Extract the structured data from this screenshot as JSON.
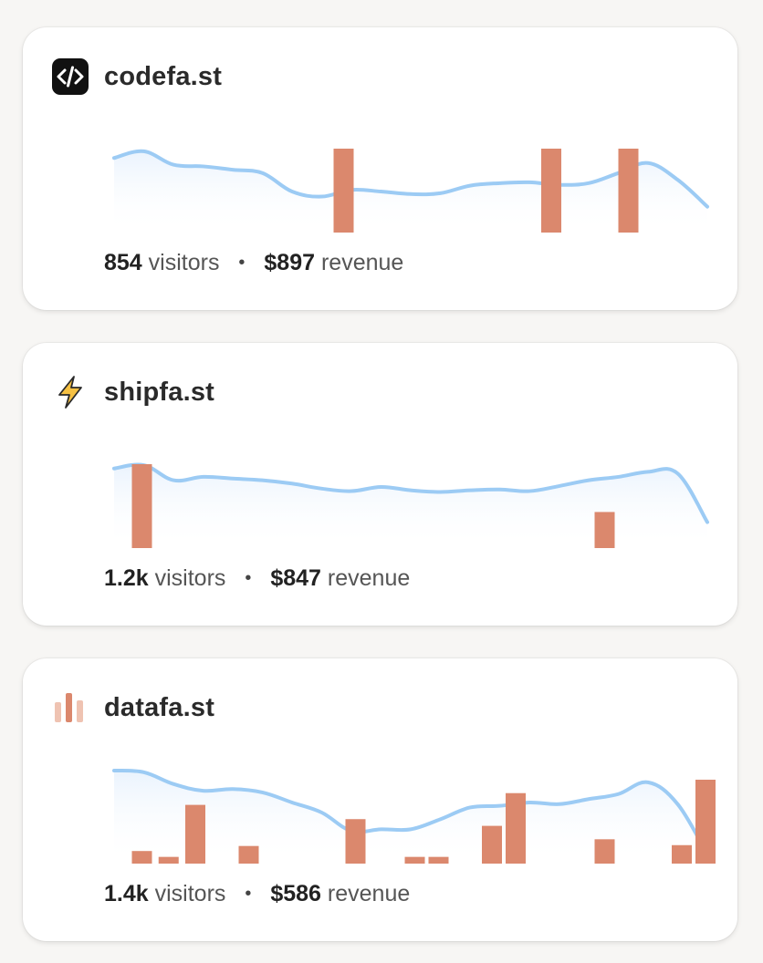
{
  "sites": [
    {
      "name": "codefa.st",
      "icon": "code-brackets-icon",
      "visitors_value": "854",
      "visitors_label": "visitors",
      "revenue_value": "$897",
      "revenue_label": "revenue",
      "separator": "•",
      "visitors_trend": [
        0.78,
        0.86,
        0.7,
        0.68,
        0.64,
        0.6,
        0.38,
        0.32,
        0.4,
        0.38,
        0.35,
        0.36,
        0.45,
        0.48,
        0.49,
        0.46,
        0.48,
        0.6,
        0.72,
        0.52,
        0.2
      ],
      "revenue_bars": [
        {
          "x": 0.37,
          "h": 1.0
        },
        {
          "x": 0.72,
          "h": 1.0
        },
        {
          "x": 0.85,
          "h": 1.0
        }
      ]
    },
    {
      "name": "shipfa.st",
      "icon": "lightning-bolt-icon",
      "visitors_value": "1.2k",
      "visitors_label": "visitors",
      "revenue_value": "$847",
      "revenue_label": "revenue",
      "separator": "•",
      "visitors_trend": [
        0.84,
        0.88,
        0.7,
        0.74,
        0.72,
        0.7,
        0.66,
        0.6,
        0.57,
        0.62,
        0.58,
        0.56,
        0.58,
        0.59,
        0.57,
        0.63,
        0.7,
        0.74,
        0.8,
        0.78,
        0.2
      ],
      "revenue_bars": [
        {
          "x": 0.03,
          "h": 1.0
        },
        {
          "x": 0.81,
          "h": 0.43
        }
      ]
    },
    {
      "name": "datafa.st",
      "icon": "bar-chart-icon",
      "visitors_value": "1.4k",
      "visitors_label": "visitors",
      "revenue_value": "$586",
      "revenue_label": "revenue",
      "separator": "•",
      "visitors_trend": [
        1.0,
        0.98,
        0.84,
        0.76,
        0.78,
        0.74,
        0.62,
        0.5,
        0.28,
        0.3,
        0.3,
        0.42,
        0.56,
        0.58,
        0.62,
        0.6,
        0.66,
        0.72,
        0.86,
        0.6,
        0.0
      ],
      "revenue_bars": [
        {
          "x": 0.03,
          "h": 0.15
        },
        {
          "x": 0.075,
          "h": 0.08
        },
        {
          "x": 0.12,
          "h": 0.7
        },
        {
          "x": 0.21,
          "h": 0.21
        },
        {
          "x": 0.39,
          "h": 0.53
        },
        {
          "x": 0.49,
          "h": 0.08
        },
        {
          "x": 0.53,
          "h": 0.08
        },
        {
          "x": 0.62,
          "h": 0.45
        },
        {
          "x": 0.66,
          "h": 0.84
        },
        {
          "x": 0.81,
          "h": 0.29
        },
        {
          "x": 0.94,
          "h": 0.22
        },
        {
          "x": 0.98,
          "h": 1.0
        }
      ]
    }
  ],
  "colors": {
    "line": "#9ccbf4",
    "area": "#eaf3fd",
    "bar": "#db886d",
    "text": "#2a2a2a",
    "muted": "#555555"
  }
}
